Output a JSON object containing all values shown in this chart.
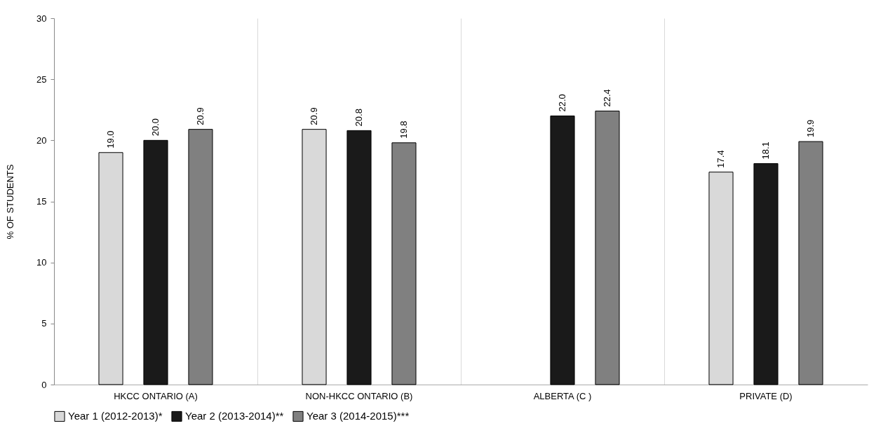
{
  "chart_data": {
    "type": "bar",
    "ylabel": "% OF STUDENTS",
    "categories": [
      "HKCC ONTARIO (A)",
      "NON-HKCC ONTARIO (B)",
      "ALBERTA (C )",
      "PRIVATE (D)"
    ],
    "series": [
      {
        "name": "Year 1 (2012-2013)*",
        "color": "#d9d9d9",
        "values": [
          19.0,
          20.9,
          null,
          17.4
        ],
        "value_labels": [
          "19.0",
          "20.9",
          null,
          "17.4"
        ]
      },
      {
        "name": "Year 2 (2013-2014)**",
        "color": "#1a1a1a",
        "values": [
          20.0,
          20.8,
          22.0,
          18.1
        ],
        "value_labels": [
          "20.0",
          "20.8",
          "22.0",
          "18.1"
        ]
      },
      {
        "name": "Year 3 (2014-2015)***",
        "color": "#808080",
        "values": [
          20.9,
          19.8,
          22.4,
          19.9
        ],
        "value_labels": [
          "20.9",
          "19.8",
          "22.4",
          "19.9"
        ]
      }
    ],
    "ylim": [
      0,
      30
    ],
    "yticks": [
      0,
      5,
      10,
      15,
      20,
      25,
      30
    ],
    "grid": "x",
    "legend": "bottom"
  }
}
